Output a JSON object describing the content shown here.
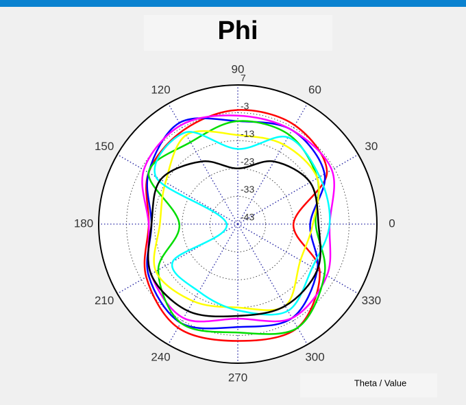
{
  "chart_data": {
    "type": "polar",
    "title": "Phi",
    "axis_label": "Theta / Value",
    "theta": [
      0,
      30,
      60,
      90,
      120,
      150,
      180,
      210,
      240,
      270,
      300,
      330
    ],
    "thetaticks": [
      0,
      30,
      60,
      90,
      120,
      150,
      180,
      210,
      240,
      270,
      300,
      330
    ],
    "rlim": [
      -43,
      7
    ],
    "rticks": [
      7,
      -3,
      -13,
      -23,
      -33,
      -43
    ],
    "grid": true,
    "series": [
      {
        "color": "#ff0000",
        "values": [
          -23,
          -6,
          -2,
          -2,
          -4,
          -6,
          -11,
          -5,
          0,
          -1,
          0,
          -9
        ]
      },
      {
        "color": "#0000ff",
        "values": [
          -17,
          -7,
          -4,
          -6,
          -1,
          -6,
          -12,
          -6,
          -2,
          -6,
          -4,
          -10
        ]
      },
      {
        "color": "#ff00ff",
        "values": [
          -10,
          -4,
          -4,
          -4,
          -2,
          -4,
          -11,
          -7,
          -4,
          -9,
          -4,
          -6
        ]
      },
      {
        "color": "#00dd00",
        "values": [
          -15,
          -10,
          -6,
          -6,
          -9,
          -6,
          -22,
          -10,
          -2,
          -4,
          0,
          -7
        ]
      },
      {
        "color": "#ffff00",
        "values": [
          -16,
          -10,
          -10,
          -11,
          -6,
          -13,
          -15,
          -9,
          -11,
          -13,
          -9,
          -17
        ]
      },
      {
        "color": "#00ffff",
        "values": [
          -10,
          -9,
          -7,
          -16,
          -5,
          -9,
          -39,
          -16,
          -15,
          -12,
          -7,
          -12
        ]
      },
      {
        "color": "#000000",
        "values": [
          -14,
          -13,
          -17,
          -23,
          -17,
          -11,
          -12,
          -7,
          -7,
          -10,
          -9,
          -10
        ]
      }
    ]
  }
}
